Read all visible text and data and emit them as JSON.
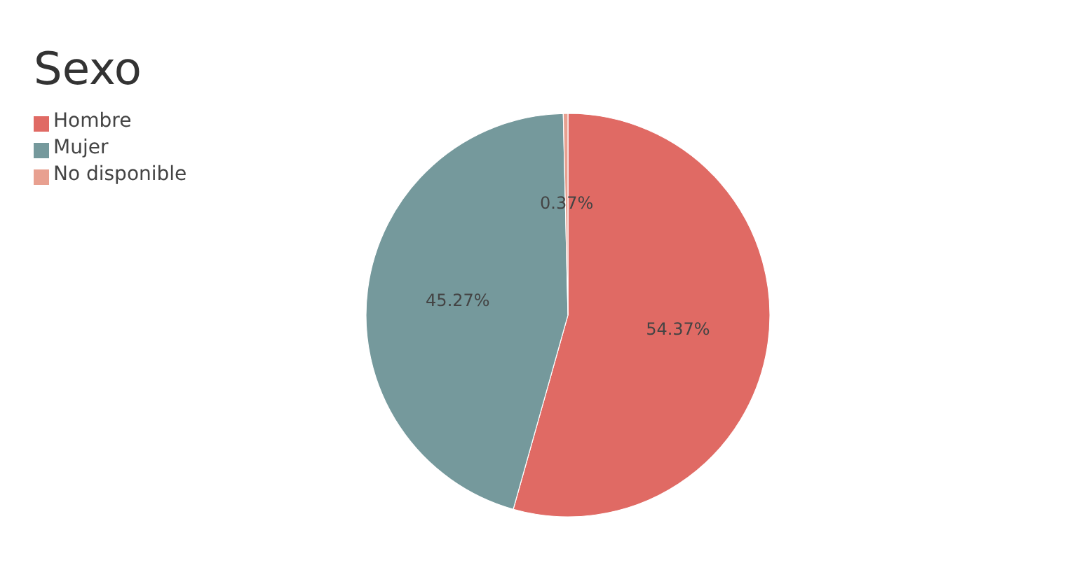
{
  "chart_data": {
    "type": "pie",
    "title": "Sexo",
    "categories": [
      "Hombre",
      "Mujer",
      "No disponible"
    ],
    "values": [
      54.37,
      45.27,
      0.37
    ],
    "colors": [
      "#e06a64",
      "#75999c",
      "#e8a090"
    ],
    "value_labels": [
      "54.37%",
      "45.27%",
      "0.37%"
    ],
    "legend": "top left"
  }
}
